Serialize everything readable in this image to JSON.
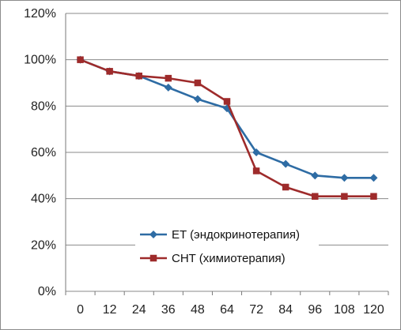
{
  "chart_data": {
    "type": "line",
    "title": "",
    "xlabel": "",
    "ylabel": "",
    "categories": [
      "0",
      "12",
      "24",
      "36",
      "48",
      "64",
      "72",
      "84",
      "96",
      "108",
      "120"
    ],
    "y_ticks": [
      "0%",
      "20%",
      "40%",
      "60%",
      "80%",
      "100%",
      "120%"
    ],
    "ylim": [
      0,
      120
    ],
    "grid": "horizontal",
    "legend_position": "bottom-center",
    "series": [
      {
        "name": "ET (эндокринотерапия)",
        "color": "#2e6ca4",
        "marker": "diamond",
        "values": [
          100,
          95,
          93,
          88,
          83,
          79,
          60,
          55,
          50,
          49,
          49
        ]
      },
      {
        "name": "CHT (химиотерапия)",
        "color": "#9e2b2b",
        "marker": "square",
        "values": [
          100,
          95,
          93,
          92,
          90,
          82,
          52,
          45,
          41,
          41,
          41
        ]
      }
    ]
  }
}
